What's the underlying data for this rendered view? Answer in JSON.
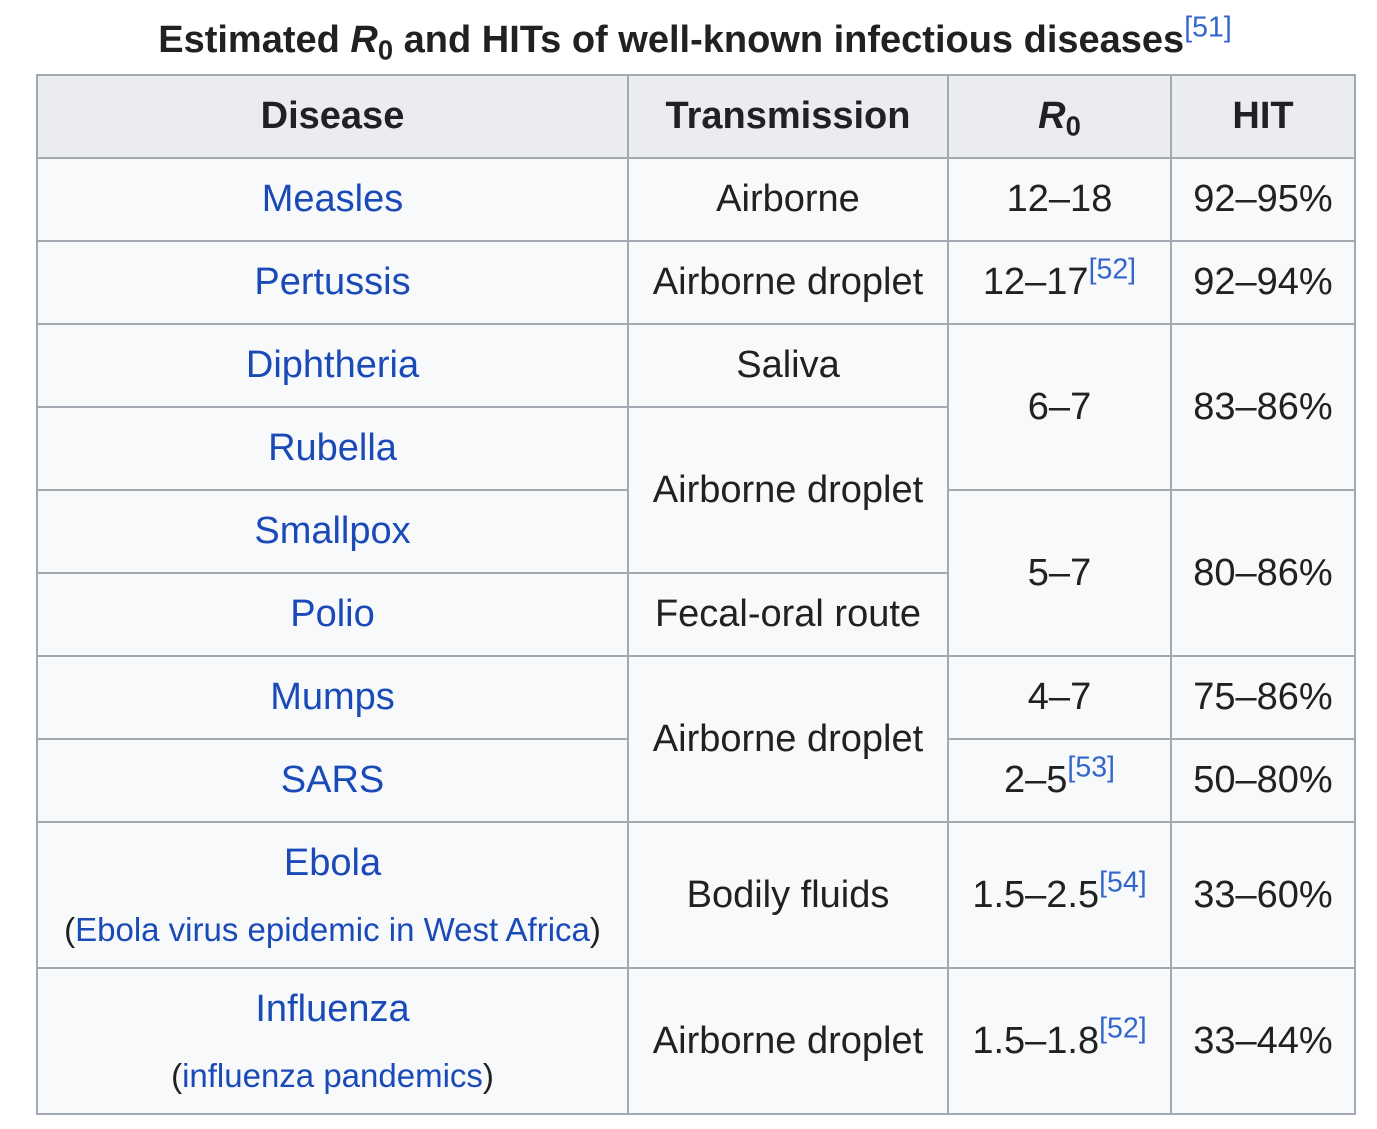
{
  "caption": {
    "before": "Estimated ",
    "r_symbol": "R",
    "r_subscript": "0",
    "after": " and HITs of well-known infectious diseases",
    "ref": "[51]"
  },
  "headers": {
    "disease": "Disease",
    "transmission": "Transmission",
    "r0_symbol": "R",
    "r0_subscript": "0",
    "hit": "HIT"
  },
  "rows": {
    "measles": {
      "disease": "Measles",
      "transmission": "Airborne",
      "r0": "12–18",
      "hit": "92–95%"
    },
    "pertussis": {
      "disease": "Pertussis",
      "transmission": "Airborne droplet",
      "r0": "12–17",
      "r0_ref": "[52]",
      "hit": "92–94%"
    },
    "diphtheria": {
      "disease": "Diphtheria",
      "transmission": "Saliva"
    },
    "rubella": {
      "disease": "Rubella"
    },
    "group_dr": {
      "r0": "6–7",
      "hit": "83–86%"
    },
    "group_rs_transmission": "Airborne droplet",
    "smallpox": {
      "disease": "Smallpox"
    },
    "polio": {
      "disease": "Polio",
      "transmission": "Fecal-oral route"
    },
    "group_sp": {
      "r0": "5–7",
      "hit": "80–86%"
    },
    "mumps": {
      "disease": "Mumps",
      "r0": "4–7",
      "hit": "75–86%"
    },
    "group_ms_transmission": "Airborne droplet",
    "sars": {
      "disease": "SARS",
      "r0": "2–5",
      "r0_ref": "[53]",
      "hit": "50–80%"
    },
    "ebola": {
      "disease": "Ebola",
      "note": "Ebola virus epidemic in West Africa",
      "transmission": "Bodily fluids",
      "r0": "1.5–2.5",
      "r0_ref": "[54]",
      "hit": "33–60%"
    },
    "influenza": {
      "disease": "Influenza",
      "note": "influenza pandemics",
      "transmission": "Airborne droplet",
      "r0": "1.5–1.8",
      "r0_ref": "[52]",
      "hit": "33–44%"
    }
  },
  "paren_open": "(",
  "paren_close": ")"
}
